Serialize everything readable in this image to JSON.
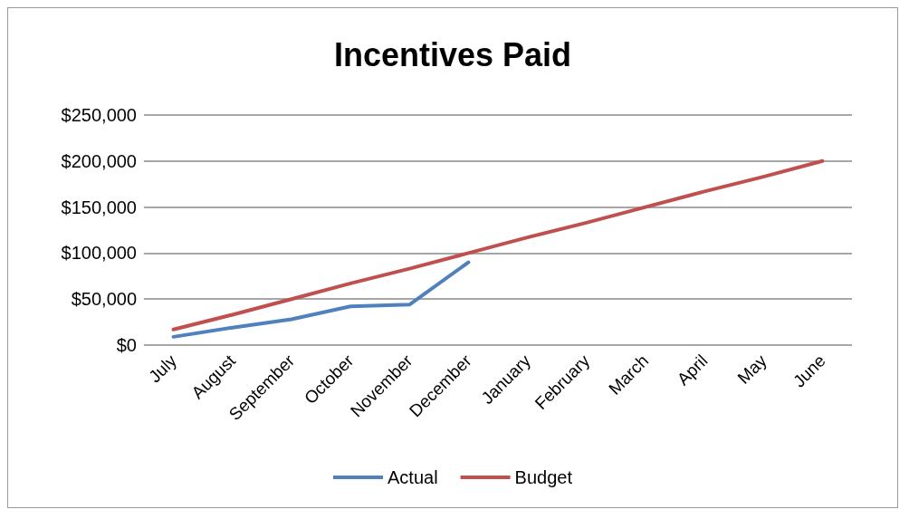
{
  "chart_data": {
    "type": "line",
    "title": "Incentives Paid",
    "categories": [
      "July",
      "August",
      "September",
      "October",
      "November",
      "December",
      "January",
      "February",
      "March",
      "April",
      "May",
      "June"
    ],
    "series": [
      {
        "name": "Actual",
        "color": "#4f81bd",
        "values": [
          9000,
          19000,
          28000,
          42000,
          44000,
          90000,
          null,
          null,
          null,
          null,
          null,
          null
        ]
      },
      {
        "name": "Budget",
        "color": "#c0504d",
        "values": [
          17000,
          33000,
          50000,
          67000,
          83000,
          100000,
          117000,
          133000,
          150000,
          167000,
          183000,
          200000
        ]
      }
    ],
    "ylim": [
      0,
      250000
    ],
    "yticks": [
      {
        "value": 0,
        "label": "$0"
      },
      {
        "value": 50000,
        "label": "$50,000"
      },
      {
        "value": 100000,
        "label": "$100,000"
      },
      {
        "value": 150000,
        "label": "$150,000"
      },
      {
        "value": 200000,
        "label": "$200,000"
      },
      {
        "value": 250000,
        "label": "$250,000"
      }
    ],
    "grid": "y",
    "legend": "bottom",
    "marker": "none",
    "line_style": "solid"
  }
}
